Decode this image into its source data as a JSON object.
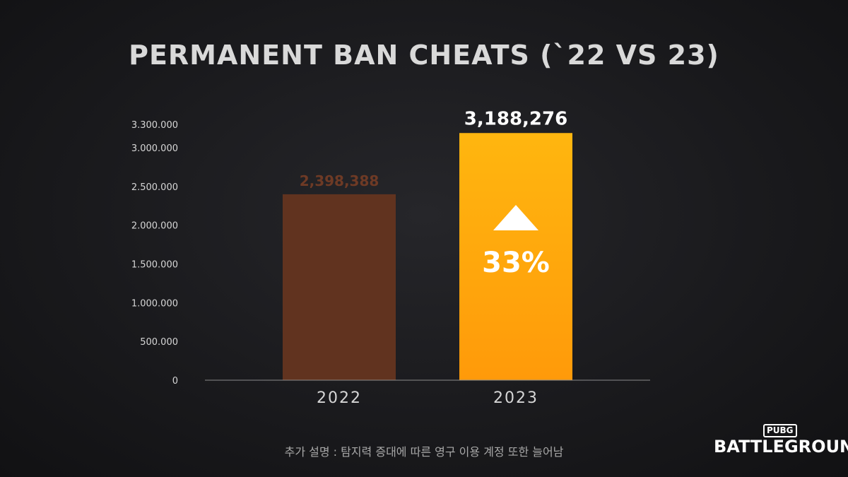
{
  "title": "PERMANENT BAN CHEATS (`22 VS 23)",
  "footnote": "추가 설명 : 탐지력 증대에 따른 영구 이용 계정 또한 늘어남",
  "logo": {
    "top": "PUBG",
    "bottom": "BATTLEGROUNDS"
  },
  "chart_data": {
    "type": "bar",
    "categories": [
      "2022",
      "2023"
    ],
    "values": [
      2398388,
      3188276
    ],
    "data_labels": [
      "2,398,388",
      "3,188,276"
    ],
    "y_ticks": [
      0,
      500000,
      1000000,
      1500000,
      2000000,
      2500000,
      3000000,
      3300000
    ],
    "y_tick_labels": [
      "0",
      "500.000",
      "1.000.000",
      "1.500.000",
      "2.000.000",
      "2.500.000",
      "3.000.000",
      "3.300.000"
    ],
    "ylim": [
      0,
      3300000
    ],
    "grid": false,
    "annotation": {
      "symbol": "▲",
      "text": "33%"
    },
    "colors": {
      "bar_2022": "#61331f",
      "bar_2023_top": "#ffb60f",
      "bar_2023_bottom": "#ff9a0a",
      "label_2022": "#6e3a25",
      "label_2023": "#ffffff",
      "axis_text": "#d6d6d6",
      "axis_line": "#8a8a8a"
    }
  }
}
